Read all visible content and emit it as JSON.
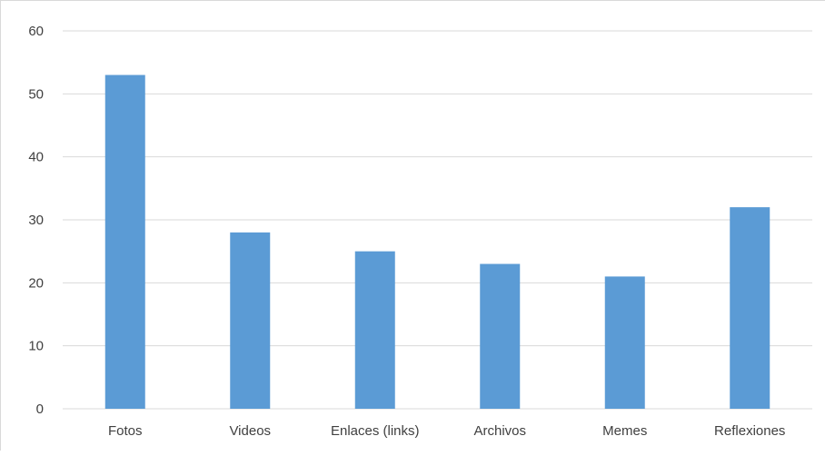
{
  "chart_data": {
    "type": "bar",
    "categories": [
      "Fotos",
      "Videos",
      "Enlaces (links)",
      "Archivos",
      "Memes",
      "Reflexiones"
    ],
    "values": [
      53,
      28,
      25,
      23,
      21,
      32
    ],
    "ylim": [
      0,
      60
    ],
    "yticks": [
      "0",
      "10",
      "20",
      "30",
      "40",
      "50",
      "60"
    ],
    "grid": true,
    "bar_color": "#5b9bd5",
    "gridline_color": "#d9d9d9",
    "title": "",
    "xlabel": "",
    "ylabel": ""
  }
}
